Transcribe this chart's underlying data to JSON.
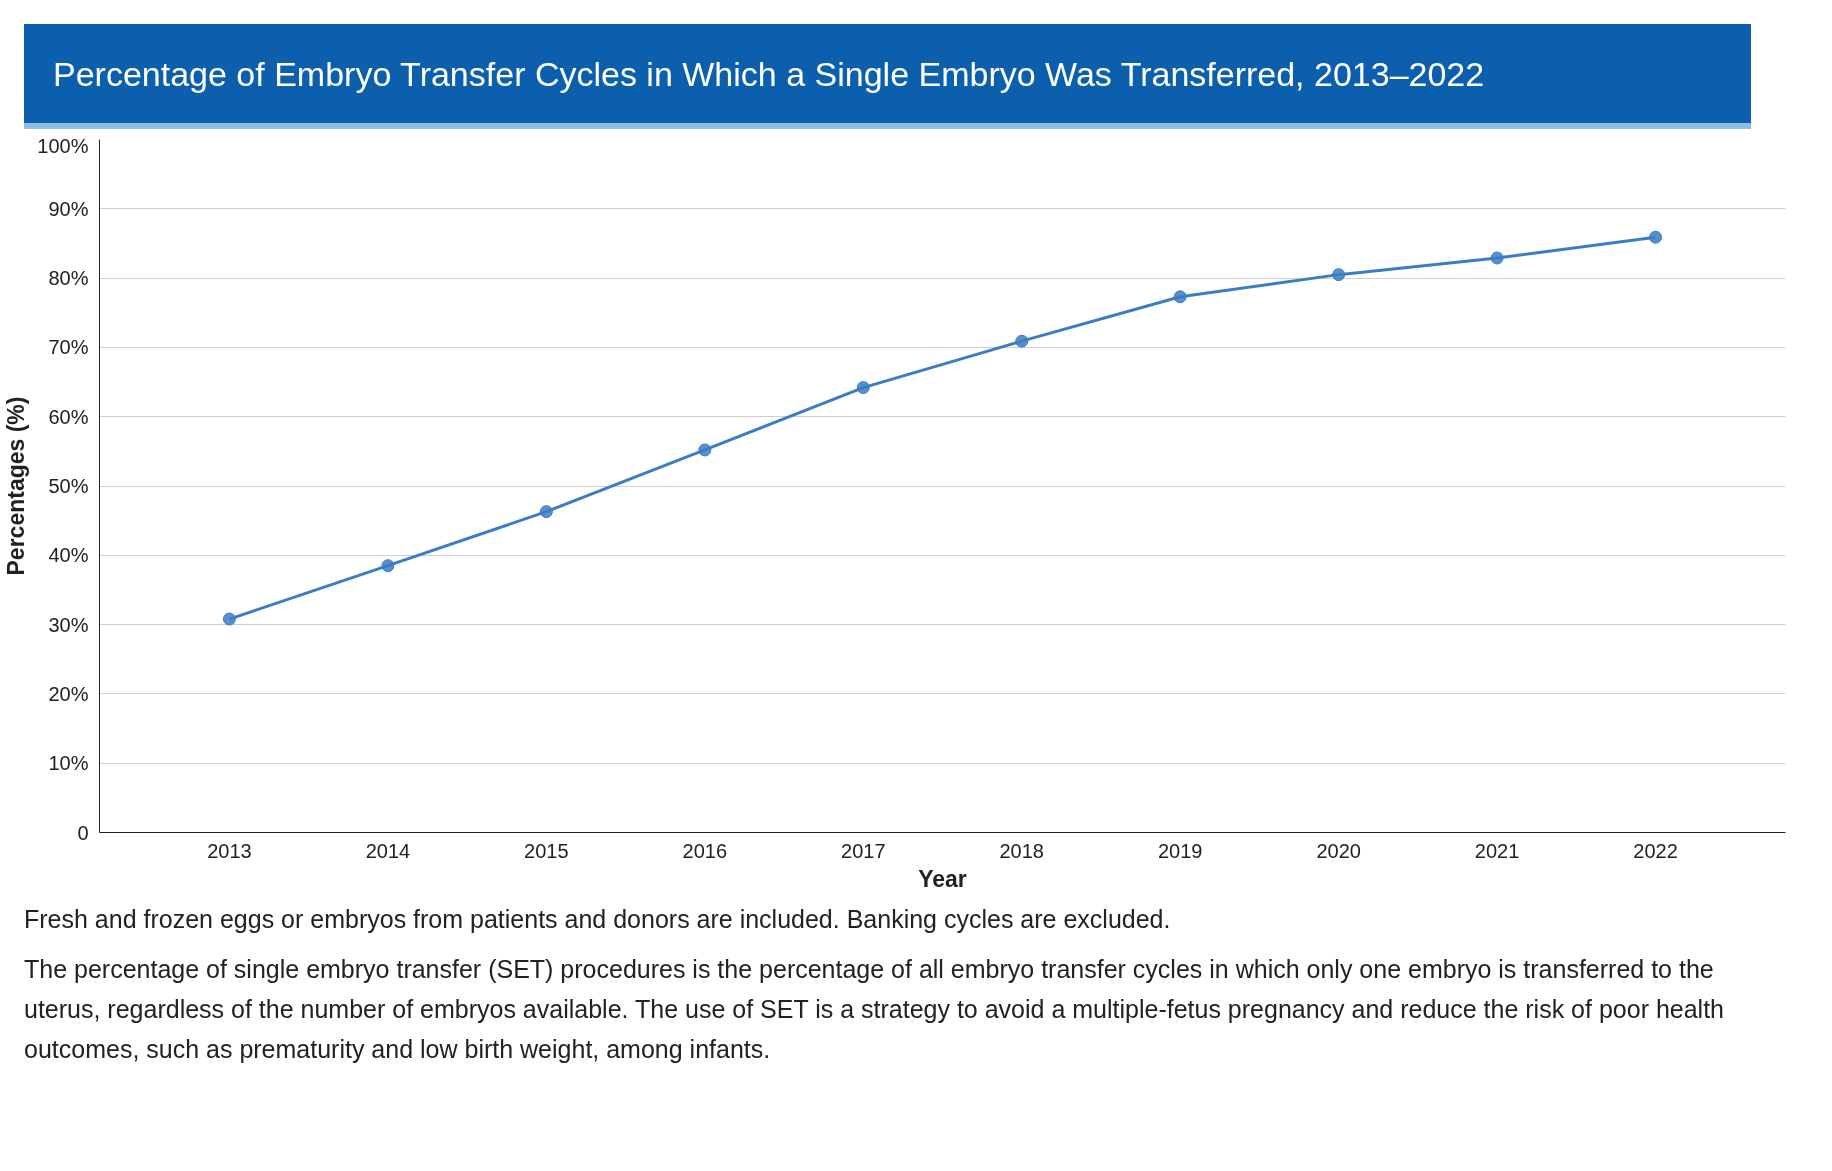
{
  "chart_data": {
    "type": "line",
    "title": "Percentage of Embryo Transfer Cycles in Which a Single Embryo Was Transferred, 2013–2022",
    "xlabel": "Year",
    "ylabel": "Percentages (%)",
    "categories": [
      "2013",
      "2014",
      "2015",
      "2016",
      "2017",
      "2018",
      "2019",
      "2020",
      "2021",
      "2022"
    ],
    "series": [
      {
        "color": "#3b7dc4",
        "values": [
          30.8,
          38.5,
          46.3,
          55.2,
          64.2,
          70.9,
          77.3,
          80.5,
          82.9,
          85.9
        ]
      }
    ],
    "ylim": [
      0,
      100
    ],
    "yticks": [
      {
        "value": 0,
        "label": "0"
      },
      {
        "value": 10,
        "label": "10%"
      },
      {
        "value": 20,
        "label": "20%"
      },
      {
        "value": 30,
        "label": "30%"
      },
      {
        "value": 40,
        "label": "40%"
      },
      {
        "value": 50,
        "label": "50%"
      },
      {
        "value": 60,
        "label": "60%"
      },
      {
        "value": 70,
        "label": "70%"
      },
      {
        "value": 80,
        "label": "80%"
      },
      {
        "value": 90,
        "label": "90%"
      },
      {
        "value": 100,
        "label": "100%"
      }
    ],
    "grid": "y",
    "marker": "circle",
    "line_style": "solid",
    "annotations": [
      "Fresh and frozen eggs or embryos from patients and donors are included. Banking cycles are excluded.",
      "The percentage of single embryo transfer (SET) procedures is the percentage of all embryo transfer cycles in which only one embryo is transferred to the uterus, regardless of the number of embryos available. The use of SET is a strategy to avoid a multiple-fetus pregnancy and reduce the risk of poor health outcomes, such as prematurity and low birth weight, among infants."
    ]
  }
}
